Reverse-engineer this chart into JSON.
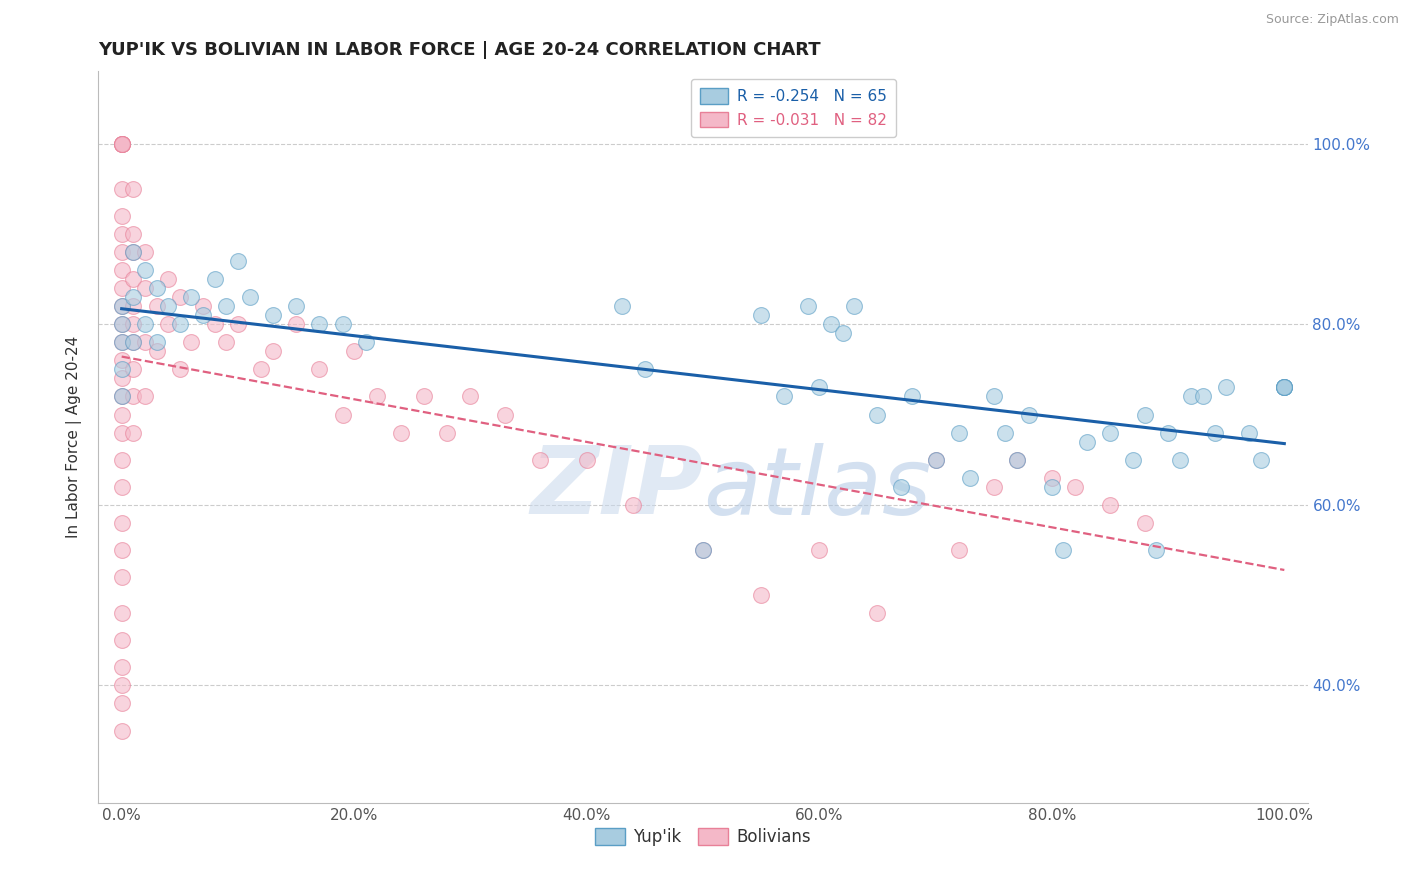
{
  "title": "YUP'IK VS BOLIVIAN IN LABOR FORCE | AGE 20-24 CORRELATION CHART",
  "source": "Source: ZipAtlas.com",
  "ylabel": "In Labor Force | Age 20-24",
  "xtick_labels": [
    "0.0%",
    "20.0%",
    "40.0%",
    "60.0%",
    "80.0%",
    "100.0%"
  ],
  "xtick_values": [
    0.0,
    0.2,
    0.4,
    0.6,
    0.8,
    1.0
  ],
  "ytick_labels": [
    "40.0%",
    "60.0%",
    "80.0%",
    "100.0%"
  ],
  "ytick_values": [
    0.4,
    0.6,
    0.8,
    1.0
  ],
  "xlim": [
    -0.02,
    1.02
  ],
  "ylim": [
    0.27,
    1.08
  ],
  "grid_color": "#cccccc",
  "background_color": "#ffffff",
  "yupik_color": "#a8cce0",
  "bolivian_color": "#f4b8c8",
  "yupik_edge": "#5a9ec5",
  "bolivian_edge": "#e88098",
  "yupik_line_color": "#1a5fa8",
  "bolivian_line_color": "#e06080",
  "legend_r_yupik": "R = -0.254",
  "legend_n_yupik": "N = 65",
  "legend_r_bolivian": "R = -0.031",
  "legend_n_bolivian": "N = 82",
  "title_fontsize": 13,
  "axis_fontsize": 11,
  "marker_size": 130,
  "marker_alpha": 0.6,
  "yupik_x": [
    0.0,
    0.0,
    0.0,
    0.0,
    0.0,
    0.01,
    0.01,
    0.01,
    0.02,
    0.02,
    0.03,
    0.03,
    0.04,
    0.05,
    0.06,
    0.07,
    0.08,
    0.09,
    0.1,
    0.11,
    0.13,
    0.15,
    0.17,
    0.19,
    0.21,
    0.43,
    0.45,
    0.5,
    0.55,
    0.57,
    0.59,
    0.6,
    0.61,
    0.62,
    0.63,
    0.65,
    0.67,
    0.68,
    0.7,
    0.72,
    0.73,
    0.75,
    0.76,
    0.77,
    0.78,
    0.8,
    0.81,
    0.83,
    0.85,
    0.87,
    0.88,
    0.89,
    0.9,
    0.91,
    0.92,
    0.93,
    0.94,
    0.95,
    0.97,
    0.98,
    1.0,
    1.0,
    1.0,
    1.0,
    1.0
  ],
  "yupik_y": [
    0.82,
    0.8,
    0.78,
    0.75,
    0.72,
    0.88,
    0.83,
    0.78,
    0.86,
    0.8,
    0.84,
    0.78,
    0.82,
    0.8,
    0.83,
    0.81,
    0.85,
    0.82,
    0.87,
    0.83,
    0.81,
    0.82,
    0.8,
    0.8,
    0.78,
    0.82,
    0.75,
    0.55,
    0.81,
    0.72,
    0.82,
    0.73,
    0.8,
    0.79,
    0.82,
    0.7,
    0.62,
    0.72,
    0.65,
    0.68,
    0.63,
    0.72,
    0.68,
    0.65,
    0.7,
    0.62,
    0.55,
    0.67,
    0.68,
    0.65,
    0.7,
    0.55,
    0.68,
    0.65,
    0.72,
    0.72,
    0.68,
    0.73,
    0.68,
    0.65,
    0.73,
    0.73,
    0.73,
    0.73,
    0.73
  ],
  "bolivian_x": [
    0.0,
    0.0,
    0.0,
    0.0,
    0.0,
    0.0,
    0.0,
    0.0,
    0.0,
    0.0,
    0.0,
    0.0,
    0.0,
    0.0,
    0.0,
    0.0,
    0.0,
    0.0,
    0.0,
    0.0,
    0.0,
    0.0,
    0.0,
    0.0,
    0.0,
    0.0,
    0.0,
    0.0,
    0.0,
    0.0,
    0.01,
    0.01,
    0.01,
    0.01,
    0.01,
    0.01,
    0.01,
    0.01,
    0.01,
    0.01,
    0.02,
    0.02,
    0.02,
    0.02,
    0.03,
    0.03,
    0.04,
    0.04,
    0.05,
    0.05,
    0.06,
    0.07,
    0.08,
    0.09,
    0.1,
    0.12,
    0.13,
    0.15,
    0.17,
    0.19,
    0.2,
    0.22,
    0.24,
    0.26,
    0.28,
    0.3,
    0.33,
    0.36,
    0.4,
    0.44,
    0.5,
    0.55,
    0.6,
    0.65,
    0.7,
    0.72,
    0.75,
    0.77,
    0.8,
    0.82,
    0.85,
    0.88
  ],
  "bolivian_y": [
    1.0,
    1.0,
    1.0,
    1.0,
    1.0,
    0.95,
    0.92,
    0.9,
    0.88,
    0.86,
    0.84,
    0.82,
    0.8,
    0.78,
    0.76,
    0.74,
    0.72,
    0.7,
    0.68,
    0.65,
    0.62,
    0.58,
    0.55,
    0.52,
    0.48,
    0.45,
    0.42,
    0.4,
    0.38,
    0.35,
    0.95,
    0.9,
    0.88,
    0.85,
    0.82,
    0.8,
    0.78,
    0.75,
    0.72,
    0.68,
    0.88,
    0.84,
    0.78,
    0.72,
    0.82,
    0.77,
    0.85,
    0.8,
    0.83,
    0.75,
    0.78,
    0.82,
    0.8,
    0.78,
    0.8,
    0.75,
    0.77,
    0.8,
    0.75,
    0.7,
    0.77,
    0.72,
    0.68,
    0.72,
    0.68,
    0.72,
    0.7,
    0.65,
    0.65,
    0.6,
    0.55,
    0.5,
    0.55,
    0.48,
    0.65,
    0.55,
    0.62,
    0.65,
    0.63,
    0.62,
    0.6,
    0.58
  ]
}
